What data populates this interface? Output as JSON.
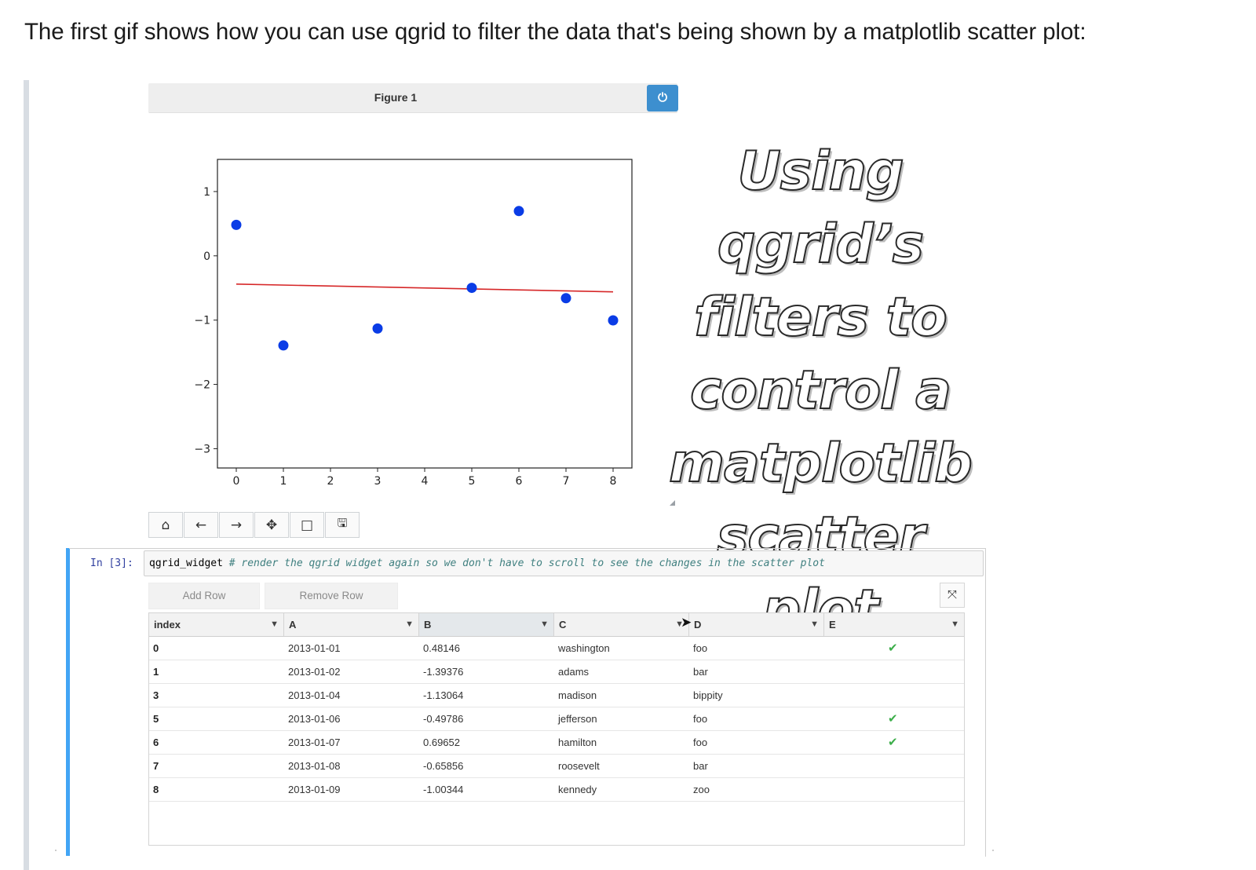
{
  "intro_text": "The first gif shows how you can use qgrid to filter the data that's being shown by a matplotlib scatter plot:",
  "figure": {
    "title": "Figure 1",
    "power_icon": "power-icon",
    "overlay_lines": [
      "Using qgrid’s",
      "filters to",
      "control a",
      "matplotlib",
      "scatter plot"
    ]
  },
  "nav_toolbar": {
    "home": "⌂",
    "back": "←",
    "forward": "→",
    "pan": "✥",
    "zoom": "□",
    "save": "🖫",
    "icons": [
      "home-icon",
      "back-arrow-icon",
      "forward-arrow-icon",
      "pan-icon",
      "zoom-rect-icon",
      "save-icon"
    ]
  },
  "chart_data": {
    "type": "scatter",
    "x_ticks": [
      "0",
      "1",
      "2",
      "3",
      "4",
      "5",
      "6",
      "7",
      "8"
    ],
    "y_ticks": [
      "1",
      "0",
      "−1",
      "−2",
      "−3"
    ],
    "xlim": [
      -0.4,
      8.4
    ],
    "ylim": [
      -3.3,
      1.5
    ],
    "points": {
      "x": [
        0,
        1,
        3,
        5,
        6,
        7,
        8
      ],
      "y": [
        0.48146,
        -1.39376,
        -1.13064,
        -0.49786,
        0.69652,
        -0.65856,
        -1.00344
      ]
    },
    "trend_line": {
      "x": [
        0,
        8
      ],
      "y": [
        -0.44,
        -0.56
      ]
    },
    "point_color": "#0a3ce6",
    "line_color": "#d62728",
    "grid": false
  },
  "cell": {
    "prompt": "In [3]:",
    "code_var": "qgrid_widget",
    "code_comment": "# render the qgrid widget again so we don't have to scroll to see the changes in the scatter plot"
  },
  "grid_buttons": {
    "add_row": "Add Row",
    "remove_row": "Remove Row",
    "expand_icon": "expand-icon"
  },
  "grid": {
    "columns": [
      "index",
      "A",
      "B",
      "C",
      "D",
      "E"
    ],
    "filter_icon": "filter-icon",
    "rows": [
      {
        "index": "0",
        "A": "2013-01-01",
        "B": "0.48146",
        "C": "washington",
        "D": "foo",
        "E": "✔"
      },
      {
        "index": "1",
        "A": "2013-01-02",
        "B": "-1.39376",
        "C": "adams",
        "D": "bar",
        "E": ""
      },
      {
        "index": "3",
        "A": "2013-01-04",
        "B": "-1.13064",
        "C": "madison",
        "D": "bippity",
        "E": ""
      },
      {
        "index": "5",
        "A": "2013-01-06",
        "B": "-0.49786",
        "C": "jefferson",
        "D": "foo",
        "E": "✔"
      },
      {
        "index": "6",
        "A": "2013-01-07",
        "B": "0.69652",
        "C": "hamilton",
        "D": "foo",
        "E": "✔"
      },
      {
        "index": "7",
        "A": "2013-01-08",
        "B": "-0.65856",
        "C": "roosevelt",
        "D": "bar",
        "E": ""
      },
      {
        "index": "8",
        "A": "2013-01-09",
        "B": "-1.00344",
        "C": "kennedy",
        "D": "zoo",
        "E": ""
      }
    ]
  }
}
